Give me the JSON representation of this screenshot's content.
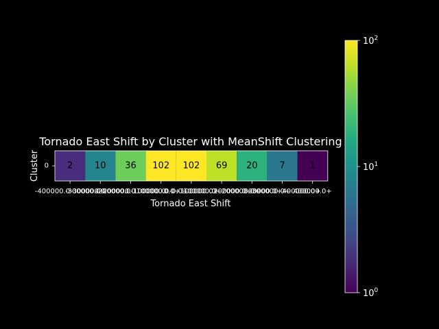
{
  "chart_data": {
    "type": "heatmap",
    "title": "Tornado East Shift by Cluster with MeanShift Clustering",
    "xlabel": "Tornado East Shift",
    "ylabel": "Cluster",
    "rows": [
      "0"
    ],
    "categories": [
      "-400000.0",
      "-300000.0",
      "-200000.0",
      "-100000.0",
      "0.0+",
      "100000.0+",
      "200000.0+",
      "300000.0+",
      "400000.0+"
    ],
    "xtick_labels": [
      "-400000.0-300000.0",
      "-300000.0-200000.0",
      "-200000.0-100000.0",
      "-100000.0-0.0+",
      "0.0+100000.0+",
      "100000.0+200000.0+",
      "200000.0+300000.0+",
      "300000.0+400000.0+",
      "400000.0+"
    ],
    "values": [
      [
        2,
        10,
        36,
        102,
        102,
        69,
        20,
        7,
        1
      ]
    ],
    "colorscale": "viridis",
    "color_scale_type": "log",
    "colorbar": {
      "range": [
        1,
        100
      ],
      "ticks": [
        {
          "value": 1,
          "label_base": "10",
          "label_exp": "0"
        },
        {
          "value": 10,
          "label_base": "10",
          "label_exp": "1"
        },
        {
          "value": 100,
          "label_base": "10",
          "label_exp": "2"
        }
      ]
    },
    "cell_colors": [
      "#472d7b",
      "#25858e",
      "#6ccd5a",
      "#fde725",
      "#fde725",
      "#bddf26",
      "#2cb17e",
      "#2b788e",
      "#440154"
    ],
    "background": "#000000",
    "text_color": "#ffffff"
  }
}
